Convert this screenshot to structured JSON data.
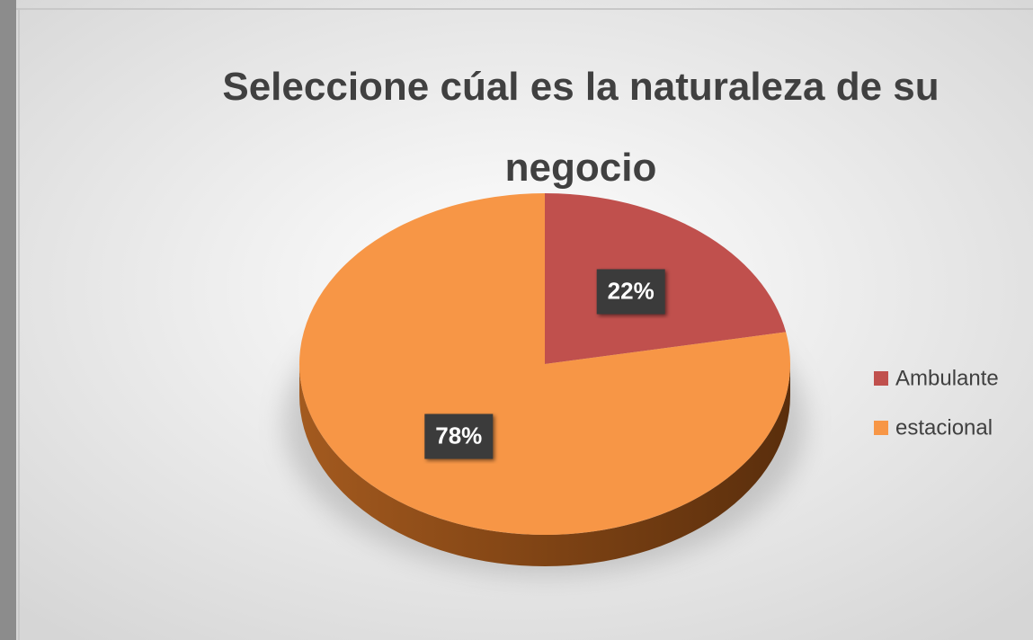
{
  "chart_data": {
    "type": "pie",
    "title": "Seleccione cúal es la naturaleza de su negocio",
    "categories": [
      "Ambulante",
      "estacional"
    ],
    "values": [
      22,
      78
    ],
    "value_labels": [
      "22%",
      "78%"
    ],
    "colors": [
      "#c0504d",
      "#f79646"
    ],
    "legend": "right"
  }
}
